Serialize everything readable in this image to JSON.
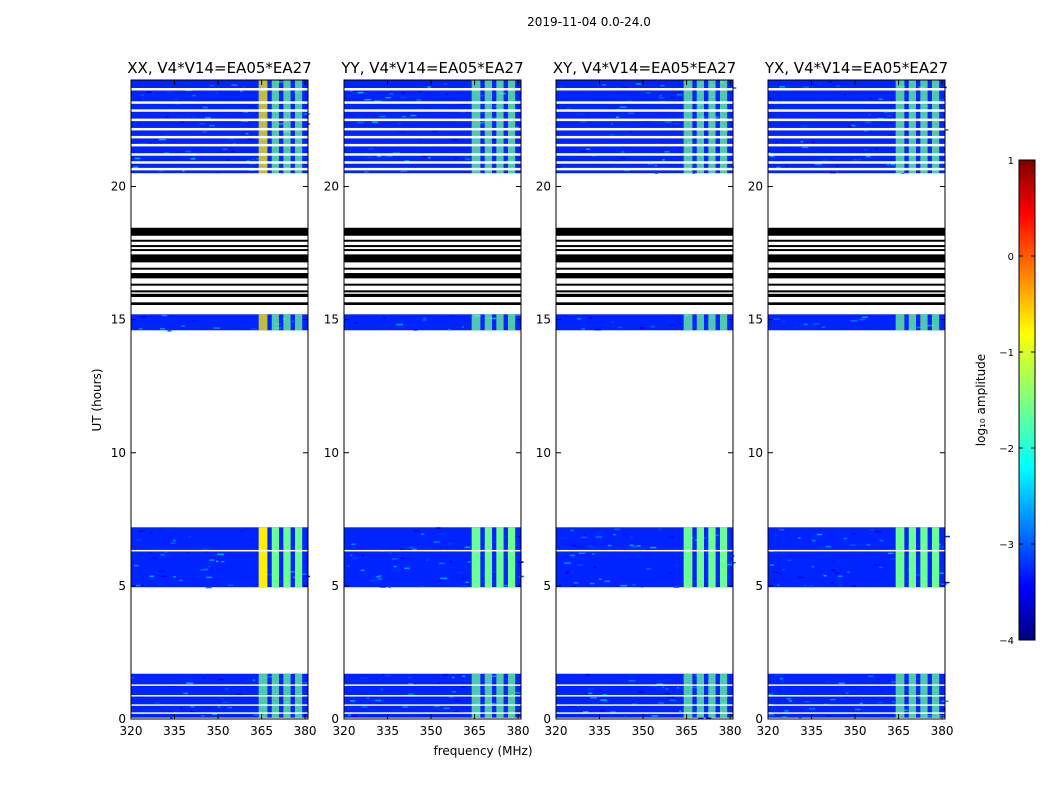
{
  "chart_data": {
    "type": "heatmap",
    "suptitle": "2019-11-04 0.0-24.0",
    "xlabel": "frequency (MHz)",
    "ylabel": "UT (hours)",
    "xlim": [
      320,
      381
    ],
    "ylim": [
      0,
      24
    ],
    "xticks": [
      320,
      335,
      350,
      365,
      380
    ],
    "yticks": [
      0,
      5,
      10,
      15,
      20
    ],
    "colorbar": {
      "label": "log₁₀ amplitude",
      "range": [
        -4,
        1
      ],
      "ticks": [
        -4,
        -3,
        -2,
        -1,
        0,
        1
      ],
      "colormap": "jet"
    },
    "panels": [
      {
        "title": "XX, V4*V14=EA05*EA27"
      },
      {
        "title": "YY, V4*V14=EA05*EA27"
      },
      {
        "title": "XY, V4*V14=EA05*EA27"
      },
      {
        "title": "YX, V4*V14=EA05*EA27"
      }
    ],
    "data_blocks_ut": [
      [
        0.05,
        1.7
      ],
      [
        4.95,
        7.2
      ],
      [
        14.6,
        15.2
      ],
      [
        20.5,
        24.0
      ]
    ],
    "flagged_black_bands_ut": [
      [
        18.15,
        18.45
      ],
      [
        17.15,
        17.45
      ],
      [
        16.55,
        16.75
      ],
      [
        15.85,
        15.97
      ],
      [
        15.55,
        15.65
      ]
    ],
    "rfi_channels_mhz": [
      [
        364,
        367
      ],
      [
        368.5,
        371
      ],
      [
        372.5,
        375
      ],
      [
        376.5,
        379
      ]
    ],
    "band_edge_rfi_start_mhz": 364,
    "background_log_amplitude": -3.2,
    "rfi_log_amplitude": -1.6,
    "peak_log_amplitude_xx": -0.3
  }
}
